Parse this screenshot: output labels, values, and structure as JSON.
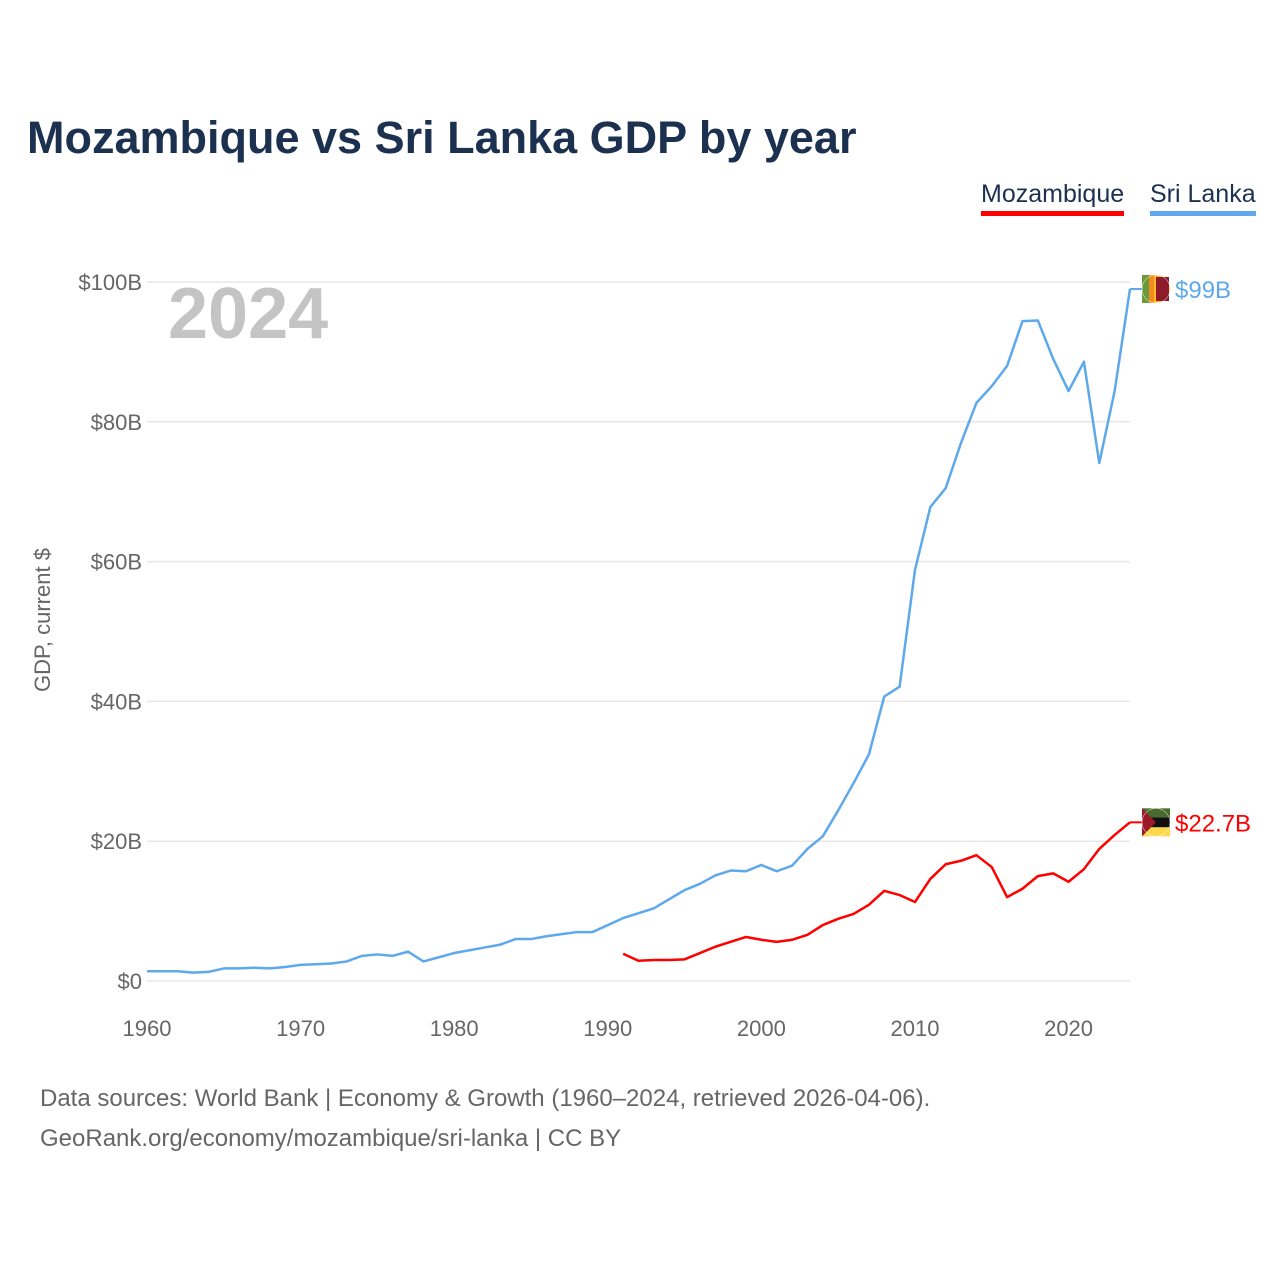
{
  "title": "Mozambique vs Sri Lanka GDP by year",
  "footer": {
    "line1": "Data sources: World Bank | Economy & Growth (1960–2024, retrieved 2026-04-06).",
    "line2": "GeoRank.org/economy/mozambique/sri-lanka | CC BY"
  },
  "chart_data": {
    "type": "line",
    "title": "Mozambique vs Sri Lanka GDP by year",
    "xlabel": "",
    "ylabel": "GDP, current $",
    "year_label": "2024",
    "xlim": [
      1960,
      2024
    ],
    "ylim": [
      0,
      100
    ],
    "x_ticks": [
      "1960",
      "1970",
      "1980",
      "1990",
      "2000",
      "2010",
      "2020"
    ],
    "y_ticks": [
      {
        "v": 0,
        "label": "$0"
      },
      {
        "v": 20,
        "label": "$20B"
      },
      {
        "v": 40,
        "label": "$40B"
      },
      {
        "v": 60,
        "label": "$60B"
      },
      {
        "v": 80,
        "label": "$80B"
      },
      {
        "v": 100,
        "label": "$100B"
      }
    ],
    "grid": true,
    "legend_position": "top-right",
    "series": [
      {
        "name": "Mozambique",
        "color": "#ff0000",
        "end_label": "$22.7B",
        "flag": "mozambique-flag",
        "start": 1991,
        "values": [
          3.9,
          2.9,
          3.0,
          3.0,
          3.1,
          4.0,
          4.9,
          5.6,
          6.3,
          5.9,
          5.6,
          5.9,
          6.6,
          8.0,
          8.9,
          9.6,
          10.9,
          12.9,
          12.3,
          11.3,
          14.6,
          16.7,
          17.2,
          18.0,
          16.3,
          12.0,
          13.2,
          15.0,
          15.4,
          14.2,
          16.0,
          18.9,
          20.9,
          22.7
        ]
      },
      {
        "name": "Sri Lanka",
        "color": "#5ea8ec",
        "end_label": "$99B",
        "flag": "sri-lanka-flag",
        "start": 1960,
        "values": [
          1.4,
          1.4,
          1.4,
          1.2,
          1.3,
          1.8,
          1.8,
          1.9,
          1.8,
          2.0,
          2.3,
          2.4,
          2.5,
          2.8,
          3.6,
          3.8,
          3.6,
          4.2,
          2.8,
          3.4,
          4.0,
          4.4,
          4.8,
          5.2,
          6.0,
          6.0,
          6.4,
          6.7,
          7.0,
          7.0,
          8.0,
          9.0,
          9.7,
          10.4,
          11.7,
          13.0,
          13.9,
          15.1,
          15.8,
          15.7,
          16.6,
          15.7,
          16.5,
          18.9,
          20.7,
          24.4,
          28.3,
          32.4,
          40.7,
          42.1,
          58.8,
          67.8,
          70.5,
          77.0,
          82.7,
          85.1,
          88.0,
          94.4,
          94.5,
          89.0,
          84.4,
          88.6,
          74.1,
          84.4,
          99.0
        ]
      }
    ]
  }
}
